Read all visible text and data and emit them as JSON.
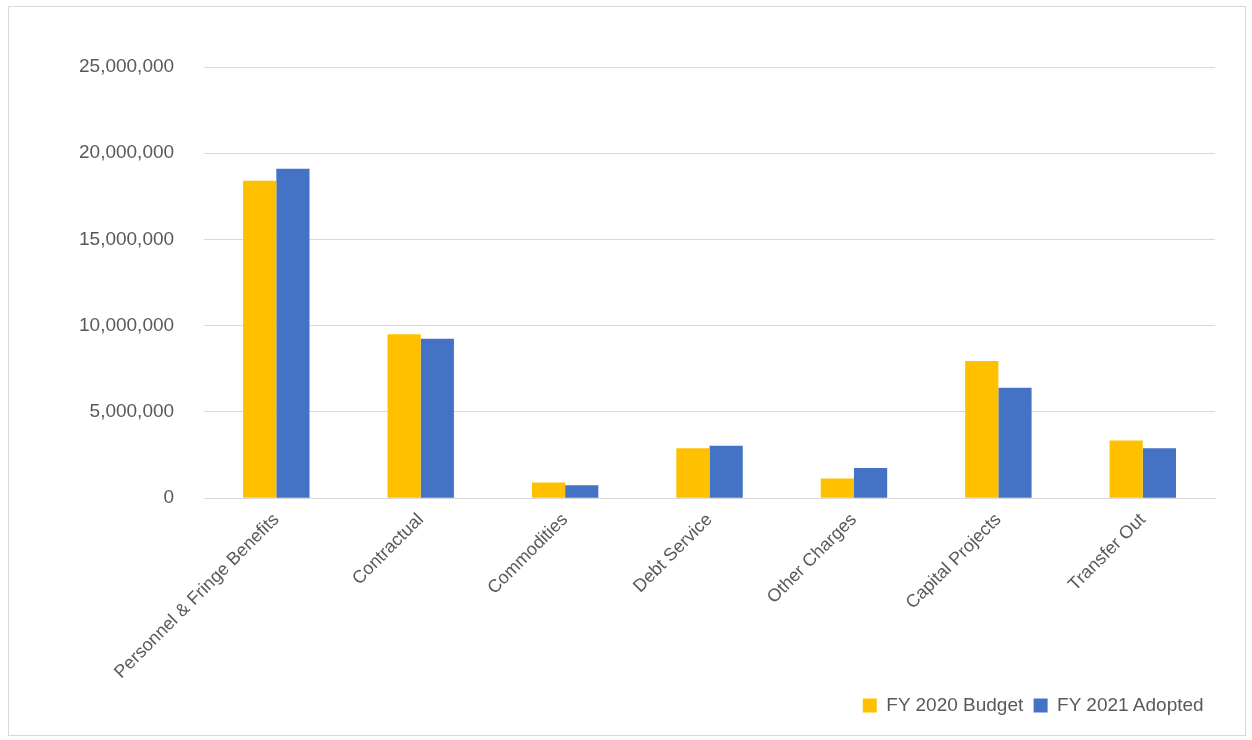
{
  "chart_data": {
    "type": "bar",
    "categories": [
      "Personnel & Fringe Benefits",
      "Contractual",
      "Commodities",
      "Debt Service",
      "Other Charges",
      "Capital Projects",
      "Transfer Out"
    ],
    "series": [
      {
        "name": "FY 2020 Budget",
        "color": "#ffc000",
        "values": [
          18400000,
          9500000,
          920000,
          2900000,
          1150000,
          7950000,
          3350000
        ]
      },
      {
        "name": "FY 2021 Adopted",
        "color": "#4472c4",
        "values": [
          19100000,
          9250000,
          750000,
          3050000,
          1750000,
          6400000,
          2900000
        ]
      }
    ],
    "ylim": [
      0,
      25000000
    ],
    "yticks": [
      0,
      {
        "value": 5000000,
        "label": "5,000,000"
      },
      {
        "value": 10000000,
        "label": "10,000,000"
      },
      {
        "value": 15000000,
        "label": "15,000,000"
      },
      {
        "value": 20000000,
        "label": "20,000,000"
      },
      {
        "value": 25000000,
        "label": "25,000,000"
      }
    ],
    "grid": "y",
    "legend": "bottom right"
  }
}
